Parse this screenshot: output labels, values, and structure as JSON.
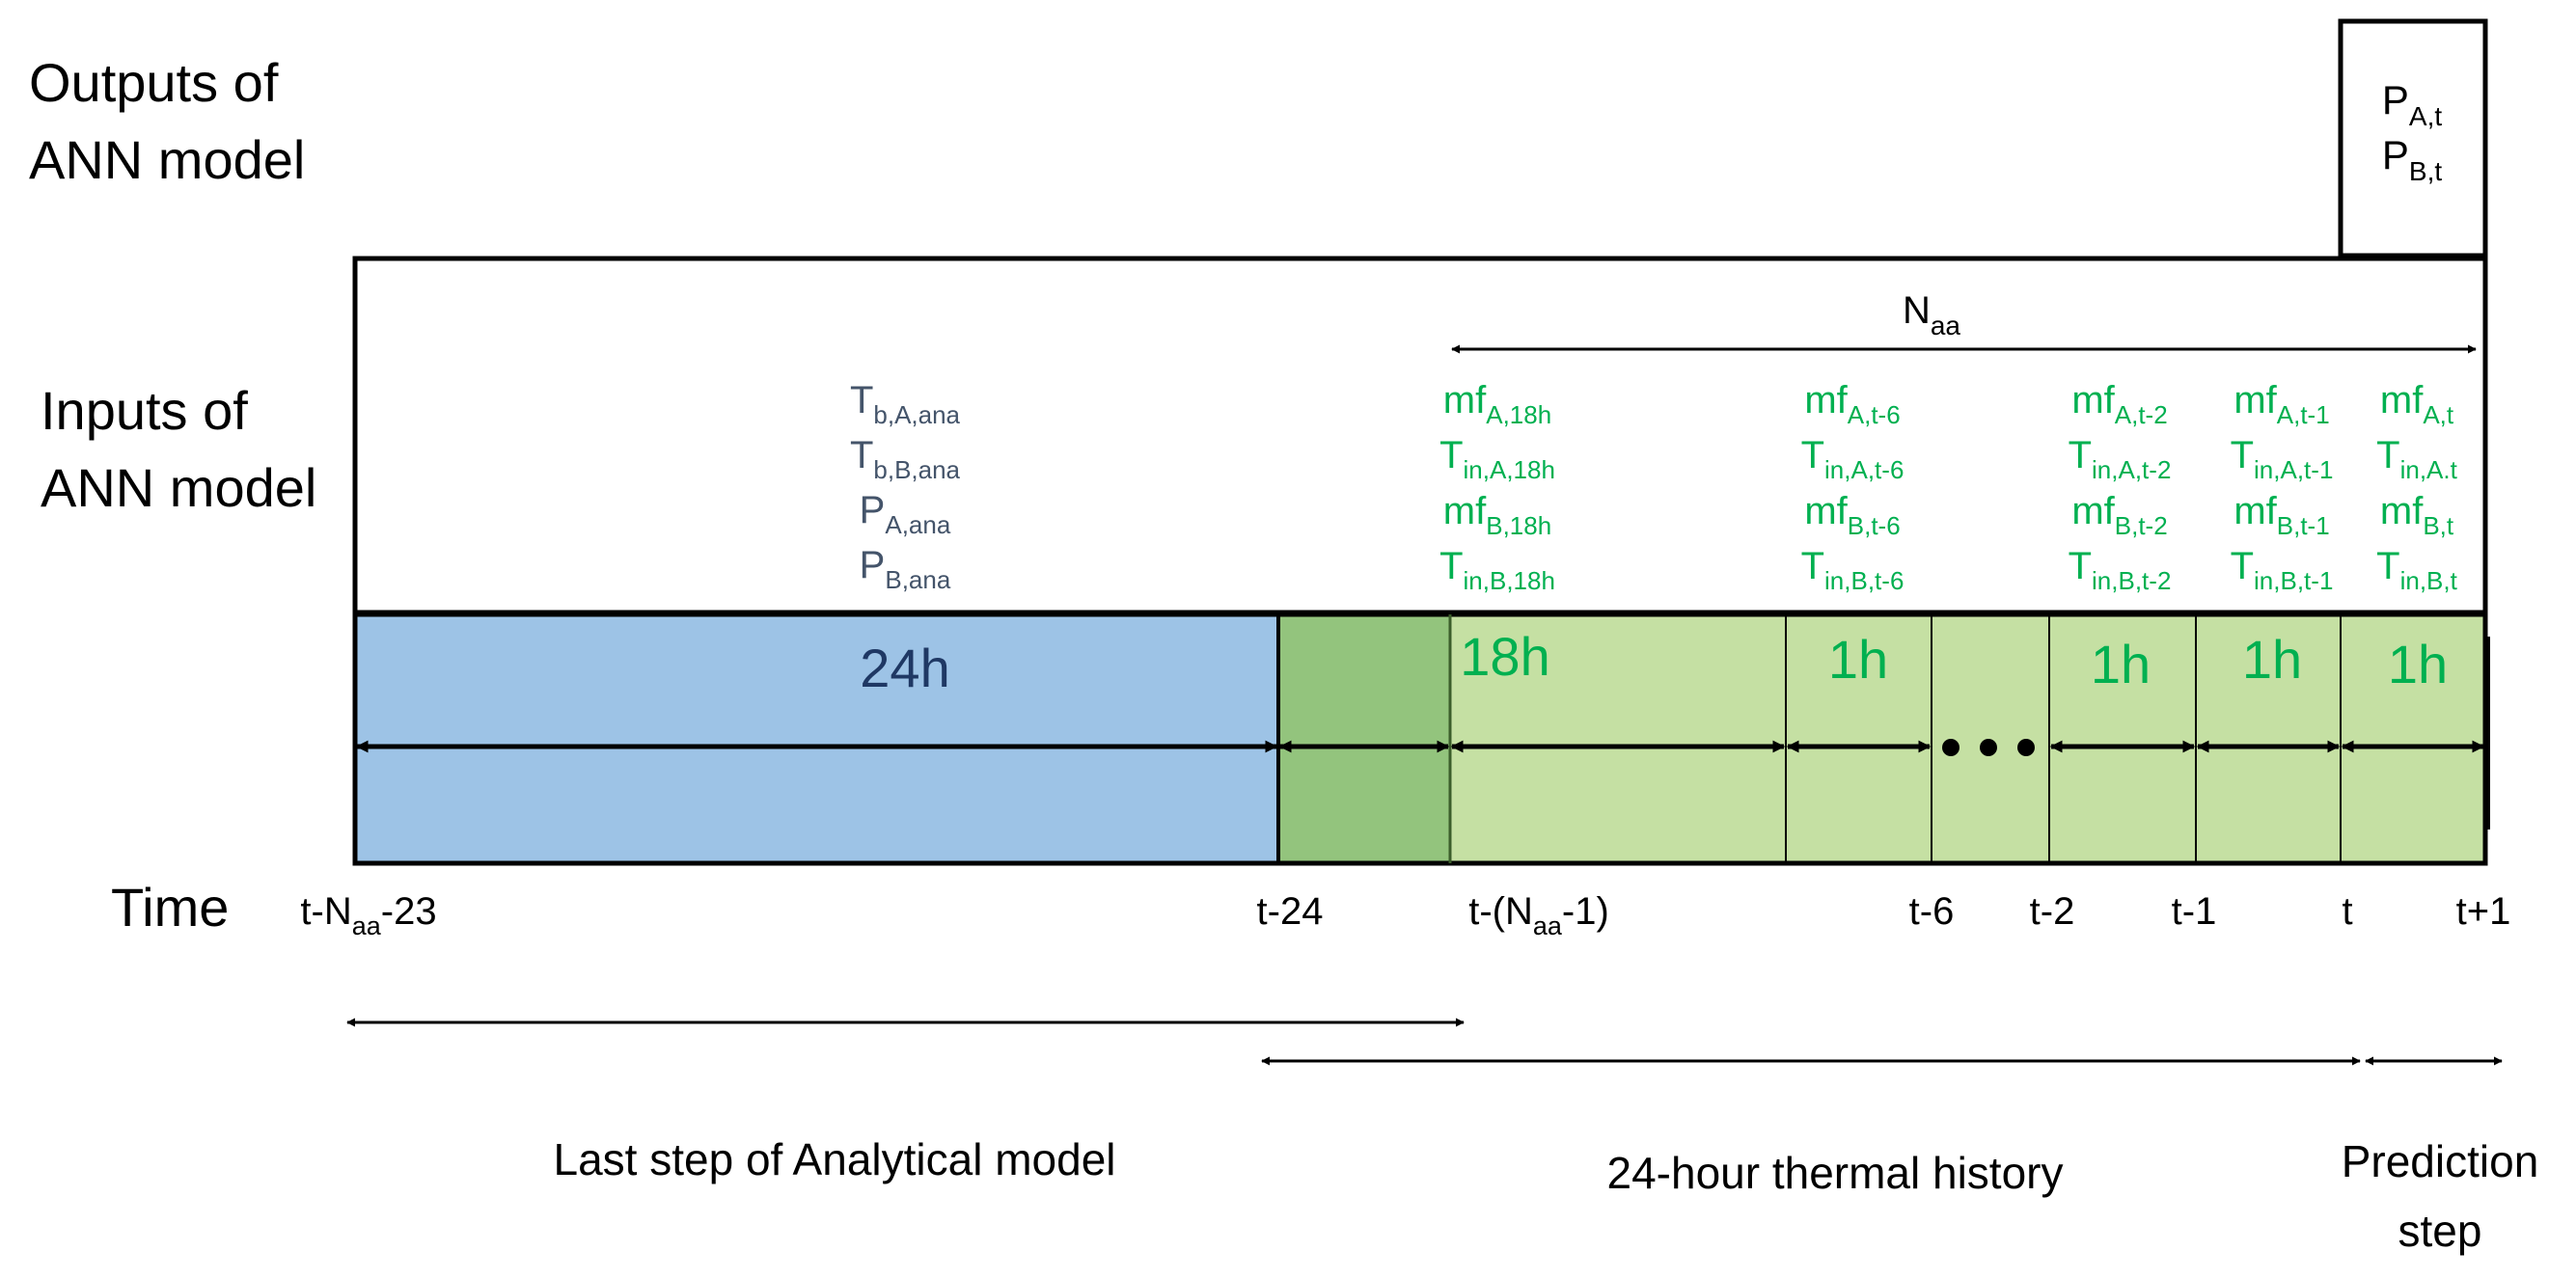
{
  "row_labels": {
    "outputs": [
      "Outputs of",
      "ANN model"
    ],
    "inputs": [
      "Inputs of",
      "ANN model"
    ],
    "time": "Time"
  },
  "output_box": [
    {
      "base": "P",
      "sub": "A,t"
    },
    {
      "base": "P",
      "sub": "B,t"
    }
  ],
  "naa_label": {
    "base": "N",
    "sub": "aa"
  },
  "analytical_inputs": [
    {
      "base": "T",
      "sub": "b,A,ana"
    },
    {
      "base": "T",
      "sub": "b,B,ana"
    },
    {
      "base": "P",
      "sub": "A,ana"
    },
    {
      "base": "P",
      "sub": "B,ana"
    }
  ],
  "history_inputs": [
    [
      {
        "base": "mf",
        "sub": "A,18h"
      },
      {
        "base": "T",
        "sub": "in,A,18h"
      },
      {
        "base": "mf",
        "sub": "B,18h"
      },
      {
        "base": "T",
        "sub": "in,B,18h"
      }
    ],
    [
      {
        "base": "mf",
        "sub": "A,t-6"
      },
      {
        "base": "T",
        "sub": "in,A,t-6"
      },
      {
        "base": "mf",
        "sub": "B,t-6"
      },
      {
        "base": "T",
        "sub": "in,B,t-6"
      }
    ],
    [
      {
        "base": "mf",
        "sub": "A,t-2"
      },
      {
        "base": "T",
        "sub": "in,A,t-2"
      },
      {
        "base": "mf",
        "sub": "B,t-2"
      },
      {
        "base": "T",
        "sub": "in,B,t-2"
      }
    ],
    [
      {
        "base": "mf",
        "sub": "A,t-1"
      },
      {
        "base": "T",
        "sub": "in,A,t-1"
      },
      {
        "base": "mf",
        "sub": "B,t-1"
      },
      {
        "base": "T",
        "sub": "in,B,t-1"
      }
    ],
    [
      {
        "base": "mf",
        "sub": "A,t"
      },
      {
        "base": "T",
        "sub": "in,A.t"
      },
      {
        "base": "mf",
        "sub": "B,t"
      },
      {
        "base": "T",
        "sub": "in,B,t"
      }
    ]
  ],
  "durations": [
    "24h",
    "18h",
    "1h",
    "1h",
    "1h",
    "1h",
    "1h"
  ],
  "time_ticks": [
    [
      {
        "text": "t-N"
      },
      {
        "text": "aa",
        "sub": true
      },
      {
        "text": "-23"
      }
    ],
    [
      {
        "text": "t-24"
      }
    ],
    [
      {
        "text": "t-(N"
      },
      {
        "text": "aa",
        "sub": true
      },
      {
        "text": "-1)"
      }
    ],
    [
      {
        "text": "t-6"
      }
    ],
    [
      {
        "text": "t-2"
      }
    ],
    [
      {
        "text": "t-1"
      }
    ],
    [
      {
        "text": "t"
      }
    ],
    [
      {
        "text": "t+1"
      }
    ]
  ],
  "bottom_labels": {
    "analytical": "Last step of Analytical model",
    "history": "24-hour thermal history",
    "prediction": [
      "Prediction",
      "step"
    ]
  },
  "colors": {
    "analytical_block": "#9dc3e6",
    "overlap_block": "#93c47d",
    "history_block": "#c5e0a3",
    "green_text": "#00b050",
    "navy_text": "#1f3864",
    "gray_text": "#44546a"
  }
}
